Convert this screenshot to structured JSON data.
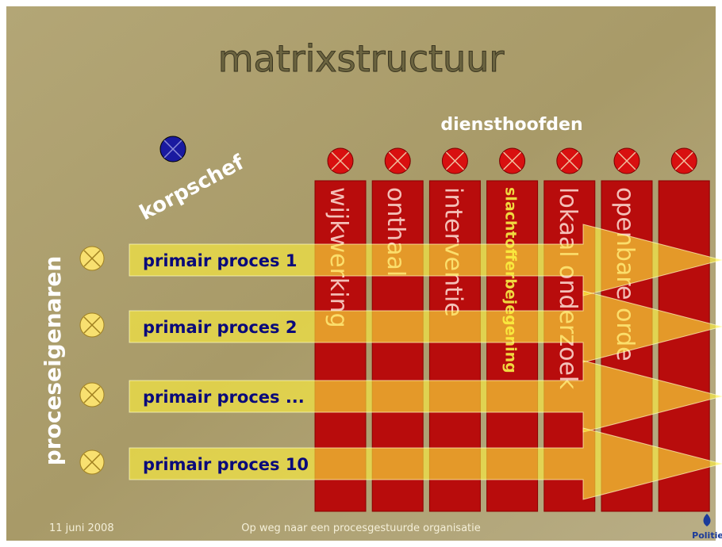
{
  "title": "matrixstructuur",
  "columns_heading": "diensthoofden",
  "top_left_label": "korpschef",
  "side_label": "proceseigenaren",
  "columns": [
    "wijkwerking",
    "onthaal",
    "interventie",
    "slachtofferbejegening",
    "lokaal onderzoek",
    "openbare orde"
  ],
  "rows": [
    "primair proces 1",
    "primair proces 2",
    "primair proces ...",
    "primair proces 10"
  ],
  "footer": {
    "date": "11 juni 2008",
    "subtitle": "Op weg naar een procesgestuurde organisatie",
    "logo": "Politie"
  }
}
